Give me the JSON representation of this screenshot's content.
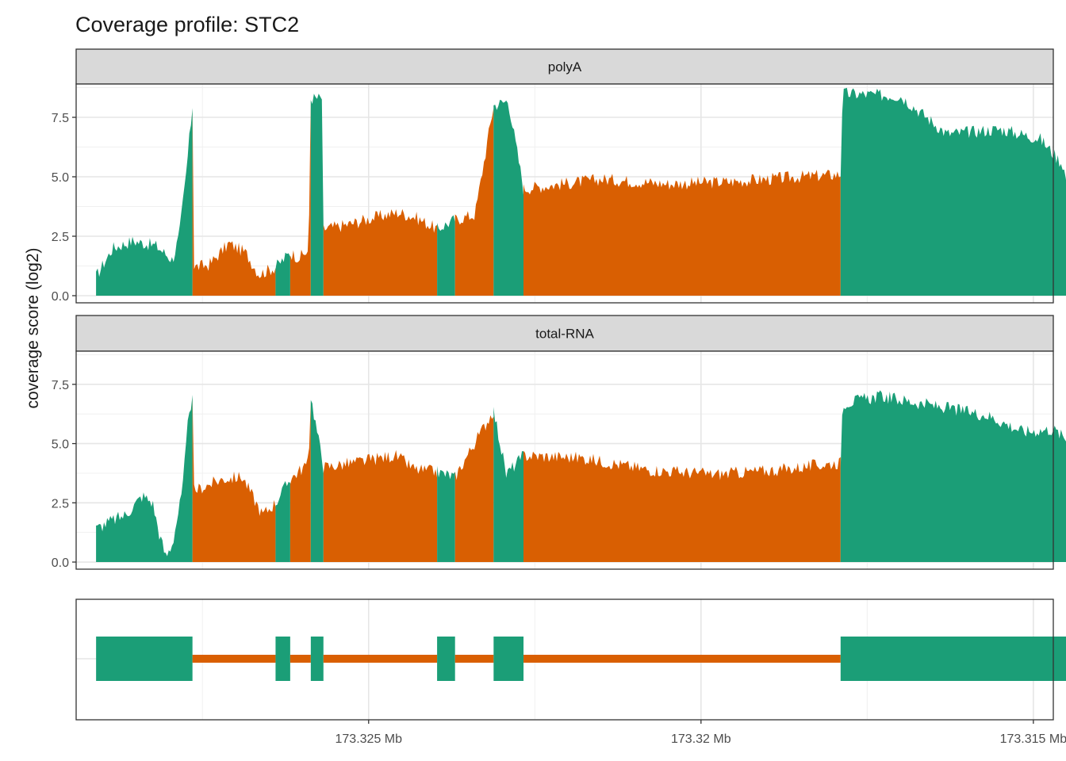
{
  "chart_data": {
    "type": "area",
    "title": "Coverage profile: STC2",
    "ylabel": "coverage score (log2)",
    "xlabel": "",
    "x_axis": {
      "reversed": true,
      "lim": [
        173.3294,
        173.3147
      ],
      "ticks": [
        173.325,
        173.32,
        173.315
      ],
      "tick_labels": [
        "173.325 Mb",
        "173.32 Mb",
        "173.315 Mb"
      ]
    },
    "y_axis": {
      "lim": [
        -0.3,
        8.9
      ],
      "ticks": [
        0.0,
        2.5,
        5.0,
        7.5
      ],
      "tick_labels": [
        "0.0",
        "2.5",
        "5.0",
        "7.5"
      ]
    },
    "grid": true,
    "colors": {
      "exon": "#1b9e77",
      "intron": "#d95f02",
      "strip": "#d9d9d9"
    },
    "segments": [
      {
        "type": "exon",
        "start": 173.3291,
        "end": 173.32765
      },
      {
        "type": "intron",
        "start": 173.32765,
        "end": 173.3264
      },
      {
        "type": "exon",
        "start": 173.3264,
        "end": 173.32618
      },
      {
        "type": "intron",
        "start": 173.32618,
        "end": 173.32587
      },
      {
        "type": "exon",
        "start": 173.32587,
        "end": 173.32568
      },
      {
        "type": "intron",
        "start": 173.32568,
        "end": 173.32397
      },
      {
        "type": "exon",
        "start": 173.32397,
        "end": 173.3237
      },
      {
        "type": "intron",
        "start": 173.3237,
        "end": 173.32312
      },
      {
        "type": "exon",
        "start": 173.32312,
        "end": 173.32267
      },
      {
        "type": "intron",
        "start": 173.32267,
        "end": 173.3179
      },
      {
        "type": "exon",
        "start": 173.3179,
        "end": 173.31437
      }
    ],
    "panels": [
      {
        "name": "polyA",
        "profile": [
          [
            173.3291,
            0.8
          ],
          [
            173.32885,
            2.0
          ],
          [
            173.32855,
            2.3
          ],
          [
            173.3282,
            2.1
          ],
          [
            173.32795,
            1.5
          ],
          [
            173.32785,
            2.5
          ],
          [
            173.32775,
            5.0
          ],
          [
            173.32765,
            8.0
          ],
          [
            173.32763,
            1.2
          ],
          [
            173.3274,
            1.3
          ],
          [
            173.3271,
            2.2
          ],
          [
            173.32685,
            1.8
          ],
          [
            173.32665,
            0.9
          ],
          [
            173.3264,
            1.2
          ],
          [
            173.32618,
            1.8
          ],
          [
            173.32605,
            1.6
          ],
          [
            173.3259,
            1.9
          ],
          [
            173.32587,
            8.3
          ],
          [
            173.3257,
            8.3
          ],
          [
            173.32568,
            2.8
          ],
          [
            173.3253,
            3.0
          ],
          [
            173.3249,
            3.3
          ],
          [
            173.32455,
            3.5
          ],
          [
            173.3243,
            3.3
          ],
          [
            173.32397,
            2.8
          ],
          [
            173.3237,
            3.2
          ],
          [
            173.3234,
            3.4
          ],
          [
            173.32312,
            8.0
          ],
          [
            173.3229,
            8.2
          ],
          [
            173.32267,
            4.5
          ],
          [
            173.3215,
            4.9
          ],
          [
            173.3205,
            4.7
          ],
          [
            173.3195,
            4.8
          ],
          [
            173.3185,
            5.0
          ],
          [
            173.3179,
            5.1
          ],
          [
            173.31787,
            8.5
          ],
          [
            173.317,
            8.4
          ],
          [
            173.3163,
            6.8
          ],
          [
            173.3155,
            7.0
          ],
          [
            173.3149,
            6.6
          ],
          [
            173.31455,
            5.5
          ],
          [
            173.31437,
            2.5
          ]
        ]
      },
      {
        "name": "total-RNA",
        "profile": [
          [
            173.3291,
            1.4
          ],
          [
            173.3289,
            1.7
          ],
          [
            173.32865,
            2.0
          ],
          [
            173.3284,
            2.8
          ],
          [
            173.32825,
            2.5
          ],
          [
            173.32815,
            1.2
          ],
          [
            173.32805,
            0.2
          ],
          [
            173.32795,
            0.8
          ],
          [
            173.3278,
            3.0
          ],
          [
            173.3277,
            6.5
          ],
          [
            173.32765,
            6.8
          ],
          [
            173.32763,
            3.0
          ],
          [
            173.3272,
            3.5
          ],
          [
            173.3269,
            3.6
          ],
          [
            173.3266,
            2.0
          ],
          [
            173.3264,
            2.5
          ],
          [
            173.32618,
            3.5
          ],
          [
            173.3259,
            4.2
          ],
          [
            173.32587,
            7.0
          ],
          [
            173.32568,
            4.0
          ],
          [
            173.3252,
            4.2
          ],
          [
            173.3246,
            4.5
          ],
          [
            173.3243,
            3.9
          ],
          [
            173.32397,
            3.8
          ],
          [
            173.3237,
            3.6
          ],
          [
            173.32312,
            6.4
          ],
          [
            173.32293,
            3.7
          ],
          [
            173.32267,
            4.5
          ],
          [
            173.3218,
            4.4
          ],
          [
            173.3208,
            3.9
          ],
          [
            173.3198,
            3.7
          ],
          [
            173.3188,
            3.9
          ],
          [
            173.3179,
            4.2
          ],
          [
            173.31787,
            6.7
          ],
          [
            173.3173,
            7.0
          ],
          [
            173.3165,
            6.6
          ],
          [
            173.3157,
            6.2
          ],
          [
            173.31515,
            5.5
          ],
          [
            173.3147,
            5.6
          ],
          [
            173.31437,
            4.9
          ]
        ]
      }
    ]
  }
}
